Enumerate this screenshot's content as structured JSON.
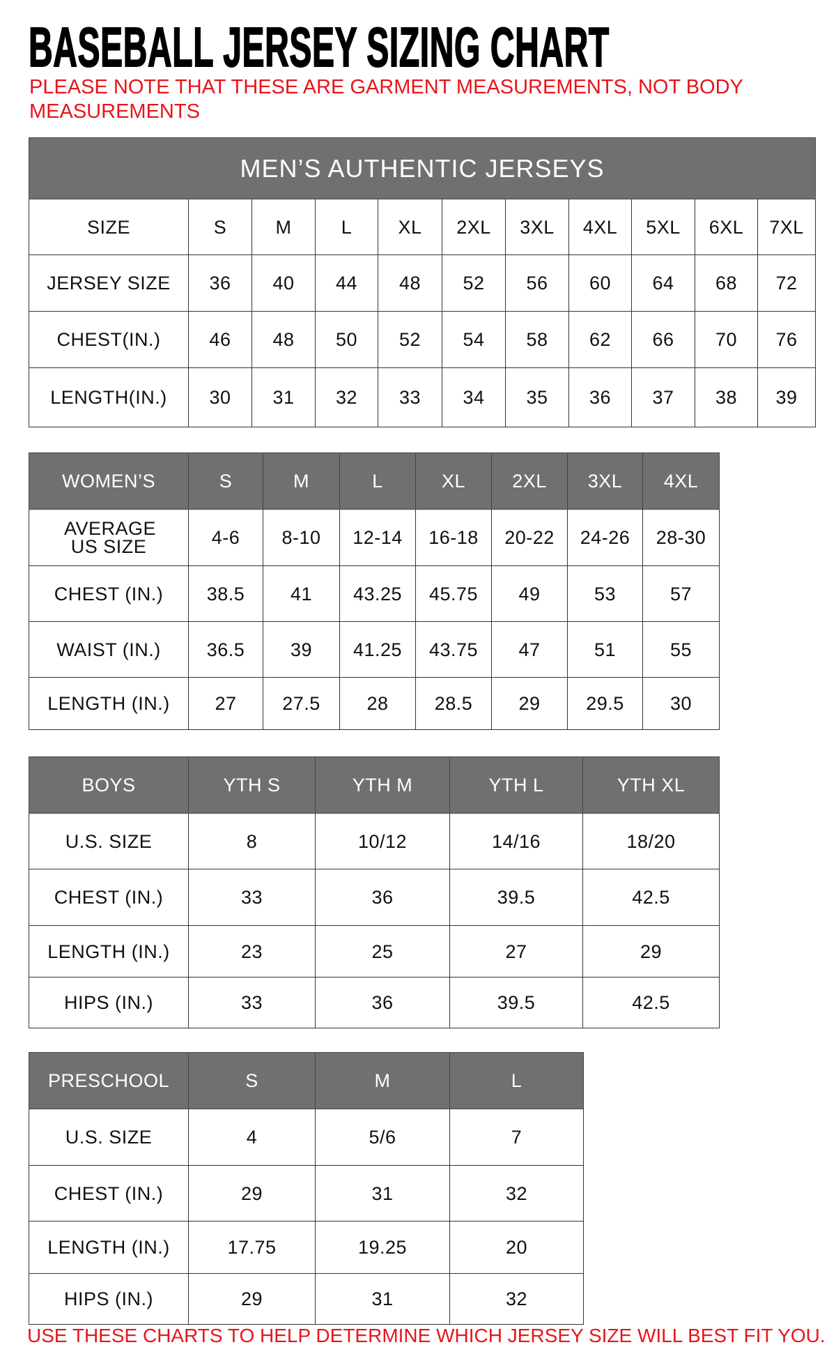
{
  "title": "BASEBALL JERSEY SIZING CHART",
  "note": "PLEASE NOTE THAT THESE ARE GARMENT MEASUREMENTS, NOT BODY MEASUREMENTS",
  "footer_note": "USE THESE CHARTS TO HELP DETERMINE WHICH JERSEY SIZE WILL BEST FIT YOU.",
  "colors": {
    "header_bg": "#707070",
    "note_red": "#e8141b"
  },
  "tables": [
    {
      "id": "mens",
      "caption": "MEN’S AUTHENTIC JERSEYS",
      "header": [
        "SIZE",
        "S",
        "M",
        "L",
        "XL",
        "2XL",
        "3XL",
        "4XL",
        "5XL",
        "6XL",
        "7XL"
      ],
      "header_style": "plain",
      "rows": [
        [
          "JERSEY SIZE",
          "36",
          "40",
          "44",
          "48",
          "52",
          "56",
          "60",
          "64",
          "68",
          "72"
        ],
        [
          "CHEST(IN.)",
          "46",
          "48",
          "50",
          "52",
          "54",
          "58",
          "62",
          "66",
          "70",
          "76"
        ],
        [
          "LENGTH(IN.)",
          "30",
          "31",
          "32",
          "33",
          "34",
          "35",
          "36",
          "37",
          "38",
          "39"
        ]
      ]
    },
    {
      "id": "womens",
      "header": [
        "WOMEN’S",
        "S",
        "M",
        "L",
        "XL",
        "2XL",
        "3XL",
        "4XL"
      ],
      "header_style": "gray",
      "rows": [
        [
          "AVERAGE US SIZE",
          "4-6",
          "8-10",
          "12-14",
          "16-18",
          "20-22",
          "24-26",
          "28-30"
        ],
        [
          "CHEST (IN.)",
          "38.5",
          "41",
          "43.25",
          "45.75",
          "49",
          "53",
          "57"
        ],
        [
          "WAIST (IN.)",
          "36.5",
          "39",
          "41.25",
          "43.75",
          "47",
          "51",
          "55"
        ],
        [
          "LENGTH (IN.)",
          "27",
          "27.5",
          "28",
          "28.5",
          "29",
          "29.5",
          "30"
        ]
      ]
    },
    {
      "id": "boys",
      "header": [
        "BOYS",
        "YTH S",
        "YTH M",
        "YTH L",
        "YTH XL"
      ],
      "header_style": "gray",
      "rows": [
        [
          "U.S. SIZE",
          "8",
          "10/12",
          "14/16",
          "18/20"
        ],
        [
          "CHEST (IN.)",
          "33",
          "36",
          "39.5",
          "42.5"
        ],
        [
          "LENGTH (IN.)",
          "23",
          "25",
          "27",
          "29"
        ],
        [
          "HIPS (IN.)",
          "33",
          "36",
          "39.5",
          "42.5"
        ]
      ]
    },
    {
      "id": "preschool",
      "header": [
        "PRESCHOOL",
        "S",
        "M",
        "L"
      ],
      "header_style": "gray",
      "rows": [
        [
          "U.S. SIZE",
          "4",
          "5/6",
          "7"
        ],
        [
          "CHEST (IN.)",
          "29",
          "31",
          "32"
        ],
        [
          "LENGTH (IN.)",
          "17.75",
          "19.25",
          "20"
        ],
        [
          "HIPS (IN.)",
          "29",
          "31",
          "32"
        ]
      ]
    }
  ]
}
